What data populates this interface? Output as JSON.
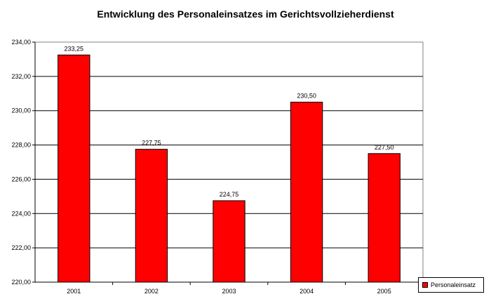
{
  "chart_data": {
    "type": "bar",
    "title": "Entwicklung des Personaleinsatzes im Gerichtsvollzieherdienst",
    "categories": [
      "2001",
      "2002",
      "2003",
      "2004",
      "2005"
    ],
    "series": [
      {
        "name": "Personaleinsatz",
        "values": [
          233.25,
          227.75,
          224.75,
          230.5,
          227.5
        ],
        "value_labels": [
          "233,25",
          "227,75",
          "224,75",
          "230,50",
          "227,50"
        ],
        "color": "#ff0000"
      }
    ],
    "ylim": [
      220,
      234
    ],
    "yticks": [
      220,
      222,
      224,
      226,
      228,
      230,
      232,
      234
    ],
    "ytick_labels": [
      "220,00",
      "222,00",
      "224,00",
      "226,00",
      "228,00",
      "230,00",
      "232,00",
      "234,00"
    ],
    "grid": true,
    "legend_position": "bottom-right",
    "plot_background": "#ffffff",
    "gridline_color": "#000000"
  }
}
